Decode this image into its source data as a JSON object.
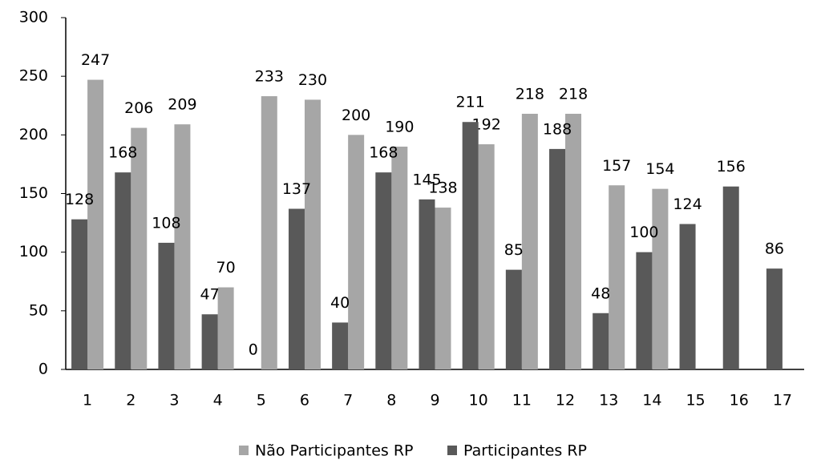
{
  "chart_data": {
    "type": "bar",
    "categories": [
      "1",
      "2",
      "3",
      "4",
      "5",
      "6",
      "7",
      "8",
      "9",
      "10",
      "11",
      "12",
      "13",
      "14",
      "15",
      "16",
      "17"
    ],
    "series": [
      {
        "name": "Não Participantes RP",
        "color": "#a6a6a6",
        "values": [
          247,
          206,
          209,
          70,
          233,
          230,
          200,
          190,
          138,
          192,
          218,
          218,
          157,
          154,
          null,
          null,
          null
        ]
      },
      {
        "name": "Participantes RP",
        "color": "#595959",
        "values": [
          128,
          168,
          108,
          47,
          0,
          137,
          40,
          168,
          145,
          211,
          85,
          188,
          48,
          100,
          124,
          156,
          86
        ]
      }
    ],
    "ylim": [
      0,
      300
    ],
    "yticks": [
      0,
      50,
      100,
      150,
      200,
      250,
      300
    ],
    "grid": false,
    "legend": "bottom"
  }
}
